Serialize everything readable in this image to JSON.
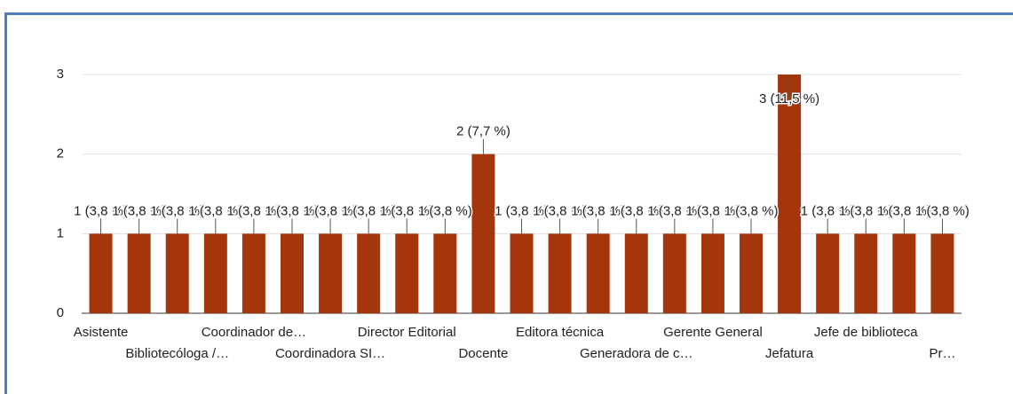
{
  "chart_data": {
    "type": "bar",
    "categories": [
      "Asistente",
      null,
      "Bibliotecóloga /…",
      null,
      "Coordinador de…",
      null,
      "Coordinadora SI…",
      null,
      "Director Editorial",
      null,
      "Docente",
      null,
      "Editora técnica",
      null,
      "Generadora de c…",
      null,
      "Gerente General",
      null,
      "Jefatura",
      null,
      "Jefe de biblioteca",
      null,
      "Pr…"
    ],
    "values": [
      1,
      1,
      1,
      1,
      1,
      1,
      1,
      1,
      1,
      1,
      2,
      1,
      1,
      1,
      1,
      1,
      1,
      1,
      3,
      1,
      1,
      1,
      1
    ],
    "value_labels": [
      "1 (3,8 %)",
      "1 (3,8 %)",
      "1 (3,8 %)",
      "1 (3,8 %)",
      "1 (3,8 %)",
      "1 (3,8 %)",
      "1 (3,8 %)",
      "1 (3,8 %)",
      "1 (3,8 %)",
      "1 (3,8 %)",
      "2 (7,7 %)",
      "1 (3,8 %)",
      "1 (3,8 %)",
      "1 (3,8 %)",
      "1 (3,8 %)",
      "1 (3,8 %)",
      "1 (3,8 %)",
      "1 (3,8 %)",
      "3 (11,5 %)",
      "1 (3,8 %)",
      "1 (3,8 %)",
      "1 (3,8 %)",
      "1 (3,8 %)"
    ],
    "color": "#a5350b",
    "ylim": [
      0,
      3
    ],
    "yticks": [
      0,
      1,
      2,
      3
    ],
    "grid": true
  }
}
